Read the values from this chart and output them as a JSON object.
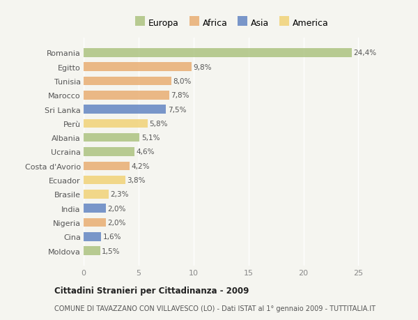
{
  "countries": [
    "Romania",
    "Egitto",
    "Tunisia",
    "Marocco",
    "Sri Lanka",
    "Perù",
    "Albania",
    "Ucraina",
    "Costa d'Avorio",
    "Ecuador",
    "Brasile",
    "India",
    "Nigeria",
    "Cina",
    "Moldova"
  ],
  "values": [
    24.4,
    9.8,
    8.0,
    7.8,
    7.5,
    5.8,
    5.1,
    4.6,
    4.2,
    3.8,
    2.3,
    2.0,
    2.0,
    1.6,
    1.5
  ],
  "labels": [
    "24,4%",
    "9,8%",
    "8,0%",
    "7,8%",
    "7,5%",
    "5,8%",
    "5,1%",
    "4,6%",
    "4,2%",
    "3,8%",
    "2,3%",
    "2,0%",
    "2,0%",
    "1,6%",
    "1,5%"
  ],
  "continents": [
    "Europa",
    "Africa",
    "Africa",
    "Africa",
    "Asia",
    "America",
    "Europa",
    "Europa",
    "Africa",
    "America",
    "America",
    "Asia",
    "Africa",
    "Asia",
    "Europa"
  ],
  "colors": {
    "Europa": "#a8c07a",
    "Africa": "#e8a96a",
    "Asia": "#5a7fc0",
    "America": "#f0d070"
  },
  "title": "Cittadini Stranieri per Cittadinanza - 2009",
  "subtitle": "COMUNE DI TAVAZZANO CON VILLAVESCO (LO) - Dati ISTAT al 1° gennaio 2009 - TUTTITALIA.IT",
  "xlim": [
    0,
    27
  ],
  "xticks": [
    0,
    5,
    10,
    15,
    20,
    25
  ],
  "background_color": "#f5f5f0",
  "bar_alpha": 0.8,
  "legend_order": [
    "Europa",
    "Africa",
    "Asia",
    "America"
  ]
}
